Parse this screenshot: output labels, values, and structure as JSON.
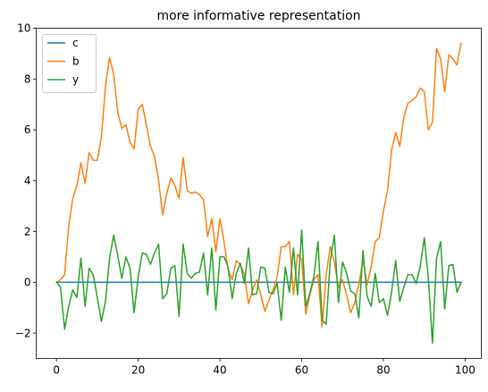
{
  "chart_data": {
    "type": "line",
    "title": "more informative representation",
    "xlabel": "",
    "ylabel": "",
    "xlim": [
      -4.95,
      103.95
    ],
    "ylim": [
      -3,
      10
    ],
    "xticks": [
      0,
      20,
      40,
      60,
      80,
      100
    ],
    "yticks": [
      -2,
      0,
      2,
      4,
      6,
      8,
      10
    ],
    "xtick_labels": [
      "0",
      "20",
      "40",
      "60",
      "80",
      "100"
    ],
    "ytick_labels": [
      "−2",
      "0",
      "2",
      "4",
      "6",
      "8",
      "10"
    ],
    "grid": false,
    "legend_position": "top-left",
    "series": [
      {
        "name": "c",
        "color": "#1f77b4",
        "x": [
          0,
          99
        ],
        "y": [
          0,
          0
        ]
      },
      {
        "name": "b",
        "color": "#ff7f0e",
        "x": [
          0,
          1,
          2,
          3,
          4,
          5,
          6,
          7,
          8,
          9,
          10,
          11,
          12,
          13,
          14,
          15,
          16,
          17,
          18,
          19,
          20,
          21,
          22,
          23,
          24,
          25,
          26,
          27,
          28,
          29,
          30,
          31,
          32,
          33,
          34,
          35,
          36,
          37,
          38,
          39,
          40,
          41,
          42,
          43,
          44,
          45,
          46,
          47,
          48,
          49,
          50,
          51,
          52,
          53,
          54,
          55,
          56,
          57,
          58,
          59,
          60,
          61,
          62,
          63,
          64,
          65,
          66,
          67,
          68,
          69,
          70,
          71,
          72,
          73,
          74,
          75,
          76,
          77,
          78,
          79,
          80,
          81,
          82,
          83,
          84,
          85,
          86,
          87,
          88,
          89,
          90,
          91,
          92,
          93,
          94,
          95,
          96,
          97,
          98,
          99
        ],
        "y": [
          0,
          0.1,
          0.3,
          2.2,
          3.3,
          3.8,
          4.7,
          3.9,
          5.1,
          4.8,
          4.8,
          5.7,
          7.7,
          8.85,
          8.2,
          6.7,
          6.05,
          6.2,
          5.5,
          5.25,
          6.8,
          7.0,
          6.2,
          5.35,
          4.95,
          4.0,
          2.65,
          3.5,
          4.1,
          3.8,
          3.3,
          4.9,
          3.6,
          3.5,
          3.55,
          3.45,
          3.25,
          1.8,
          2.5,
          1.2,
          2.5,
          1.6,
          0.5,
          0.1,
          0.85,
          0.7,
          0.3,
          -0.85,
          -0.3,
          0.1,
          -0.5,
          -1.15,
          -0.7,
          -0.3,
          0.2,
          1.4,
          1.4,
          1.6,
          -0.5,
          1.1,
          0.9,
          -1.25,
          -0.5,
          0.1,
          0.3,
          -1.75,
          0.3,
          1.4,
          0.8,
          -0.2,
          0.1,
          -0.5,
          -1.2,
          -0.8,
          -0.1,
          0.9,
          -0.1,
          0.6,
          1.6,
          1.75,
          2.8,
          3.6,
          5.2,
          5.9,
          5.35,
          6.5,
          7.05,
          7.15,
          7.3,
          7.65,
          7.5,
          6.0,
          6.3,
          9.2,
          8.8,
          7.5,
          8.95,
          8.8,
          8.55,
          9.4
        ]
      },
      {
        "name": "y",
        "color": "#2ca02c",
        "x": [
          0,
          1,
          2,
          3,
          4,
          5,
          6,
          7,
          8,
          9,
          10,
          11,
          12,
          13,
          14,
          15,
          16,
          17,
          18,
          19,
          20,
          21,
          22,
          23,
          24,
          25,
          26,
          27,
          28,
          29,
          30,
          31,
          32,
          33,
          34,
          35,
          36,
          37,
          38,
          39,
          40,
          41,
          42,
          43,
          44,
          45,
          46,
          47,
          48,
          49,
          50,
          51,
          52,
          53,
          54,
          55,
          56,
          57,
          58,
          59,
          60,
          61,
          62,
          63,
          64,
          65,
          66,
          67,
          68,
          69,
          70,
          71,
          72,
          73,
          74,
          75,
          76,
          77,
          78,
          79,
          80,
          81,
          82,
          83,
          84,
          85,
          86,
          87,
          88,
          89,
          90,
          91,
          92,
          93,
          94,
          95,
          96,
          97,
          98,
          99
        ],
        "y": [
          0,
          -0.2,
          -1.85,
          -0.95,
          -0.3,
          -0.6,
          0.95,
          -0.95,
          0.55,
          0.3,
          -0.6,
          -1.55,
          -0.75,
          0.95,
          1.85,
          1.05,
          0.15,
          1.0,
          0.55,
          -1.2,
          0.2,
          1.15,
          1.1,
          0.7,
          1.15,
          1.5,
          -0.65,
          -0.45,
          0.55,
          0.65,
          -1.35,
          1.5,
          0.35,
          0.15,
          0.35,
          0.4,
          1.15,
          -0.5,
          1.35,
          -1.1,
          1.0,
          1.0,
          0.6,
          -0.65,
          0.35,
          0.75,
          -0.05,
          1.35,
          -0.5,
          -0.45,
          0.6,
          0.55,
          -0.4,
          -0.45,
          -0.05,
          -1.5,
          0.6,
          -0.4,
          1.35,
          -0.5,
          2.05,
          -0.95,
          -0.45,
          0.25,
          1.6,
          -1.5,
          -1.65,
          0.85,
          1.85,
          -0.8,
          0.8,
          0.35,
          -0.35,
          -0.45,
          -1.4,
          1.25,
          -0.55,
          -0.95,
          0.35,
          -0.8,
          -0.65,
          -1.3,
          -0.4,
          0.85,
          -0.75,
          -0.2,
          0.3,
          0.3,
          -0.05,
          0.6,
          1.75,
          0.15,
          -2.4,
          0.95,
          1.6,
          -1.05,
          0.65,
          0.7,
          -0.4,
          0
        ]
      }
    ]
  }
}
